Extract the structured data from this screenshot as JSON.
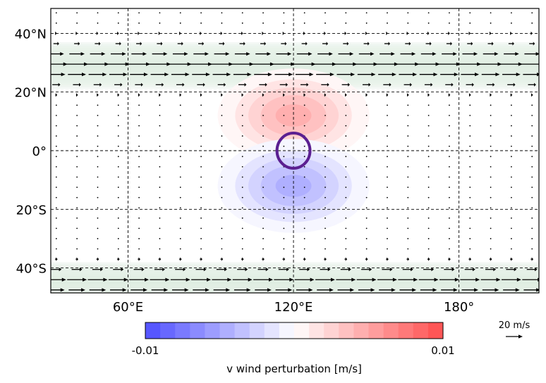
{
  "chart_data": {
    "type": "heatmap",
    "title": "",
    "field": "v wind perturbation",
    "projection": "equirectangular",
    "lon_range": [
      32,
      209
    ],
    "lat_range": [
      -48.5,
      48.5
    ],
    "x_ticks": [
      {
        "value": 60,
        "label": "60°E"
      },
      {
        "value": 120,
        "label": "120°E"
      },
      {
        "value": 180,
        "label": "180°"
      }
    ],
    "y_ticks": [
      {
        "value": 40,
        "label": "40°N"
      },
      {
        "value": 20,
        "label": "20°N"
      },
      {
        "value": 0,
        "label": "0°"
      },
      {
        "value": -20,
        "label": "20°S"
      },
      {
        "value": -40,
        "label": "40°S"
      }
    ],
    "grid": true,
    "colorbar": {
      "min": -0.01,
      "max": 0.01,
      "min_label": "-0.01",
      "max_label": "0.01",
      "label": "v wind perturbation [m/s]",
      "levels": 20,
      "cmap": "bwr",
      "neg_color": "#4d4dff",
      "pos_color": "#ff4d4d"
    },
    "perturbation": {
      "center_lon": 120,
      "center_lat": 0,
      "north_peak_lat": 12,
      "south_peak_lat": -12,
      "peak_value_north": 0.0055,
      "peak_value_south": -0.0055,
      "lon_halfwidth": 24,
      "lat_halfwidth": 14
    },
    "heat_source_circle": {
      "center_lon": 120,
      "center_lat": 0,
      "radius_deg": 6,
      "color": "#5b1f91"
    },
    "jets": [
      {
        "center_lat": 29,
        "halfwidth_deg": 8,
        "max_speed": 20,
        "direction": "eastward",
        "color": "#8fbf98"
      },
      {
        "center_lat": -45,
        "halfwidth_deg": 7,
        "max_speed": 18,
        "direction": "eastward",
        "color": "#8fbf98"
      }
    ],
    "quiver": {
      "lon_spacing": 7.5,
      "lat_spacing": 3.5,
      "reference_speed": 20,
      "reference_label": "20 m/s"
    }
  }
}
